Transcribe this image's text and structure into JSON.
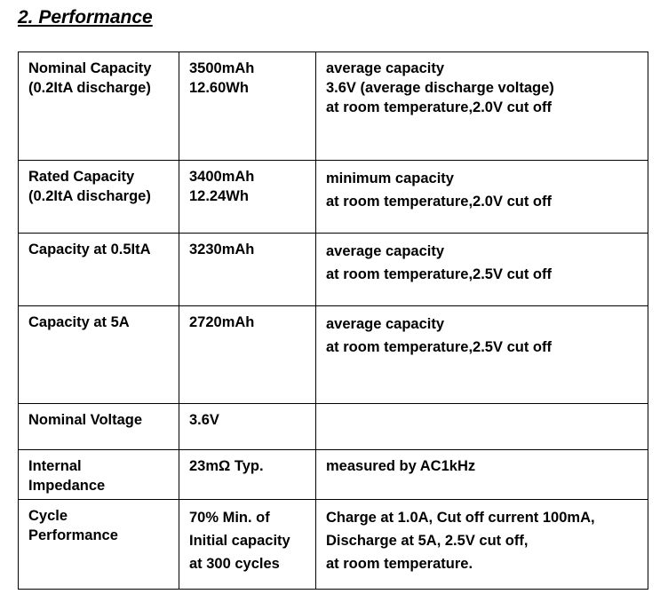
{
  "section_title": "2. Performance",
  "rows": [
    {
      "parameter": [
        "Nominal Capacity",
        "(0.2ItA discharge)"
      ],
      "value": [
        "3500mAh",
        "12.60Wh"
      ],
      "condition": [
        "average capacity",
        "3.6V (average discharge voltage)",
        "at room temperature,2.0V cut off"
      ]
    },
    {
      "parameter": [
        "Rated Capacity",
        "(0.2ItA discharge)"
      ],
      "value": [
        "3400mAh",
        "12.24Wh"
      ],
      "condition": [
        "minimum capacity",
        "at room temperature,2.0V cut off"
      ]
    },
    {
      "parameter": [
        "Capacity at 0.5ItA"
      ],
      "value": [
        "3230mAh"
      ],
      "condition": [
        "average capacity",
        "at room temperature,2.5V cut off"
      ]
    },
    {
      "parameter": [
        "Capacity at 5A"
      ],
      "value": [
        "2720mAh"
      ],
      "condition": [
        "average capacity",
        "at room temperature,2.5V cut off"
      ]
    },
    {
      "parameter": [
        "Nominal Voltage"
      ],
      "value": [
        "3.6V"
      ],
      "condition": []
    },
    {
      "parameter": [
        "Internal",
        "Impedance"
      ],
      "value": [
        "23mΩ Typ."
      ],
      "condition": [
        "measured by AC1kHz"
      ]
    },
    {
      "parameter": [
        "Cycle",
        "Performance"
      ],
      "value": [
        "70% Min. of",
        "Initial capacity",
        "at 300 cycles"
      ],
      "condition": [
        "Charge at 1.0A, Cut off current 100mA,",
        "Discharge at 5A, 2.5V cut off,",
        "at room temperature."
      ]
    }
  ]
}
